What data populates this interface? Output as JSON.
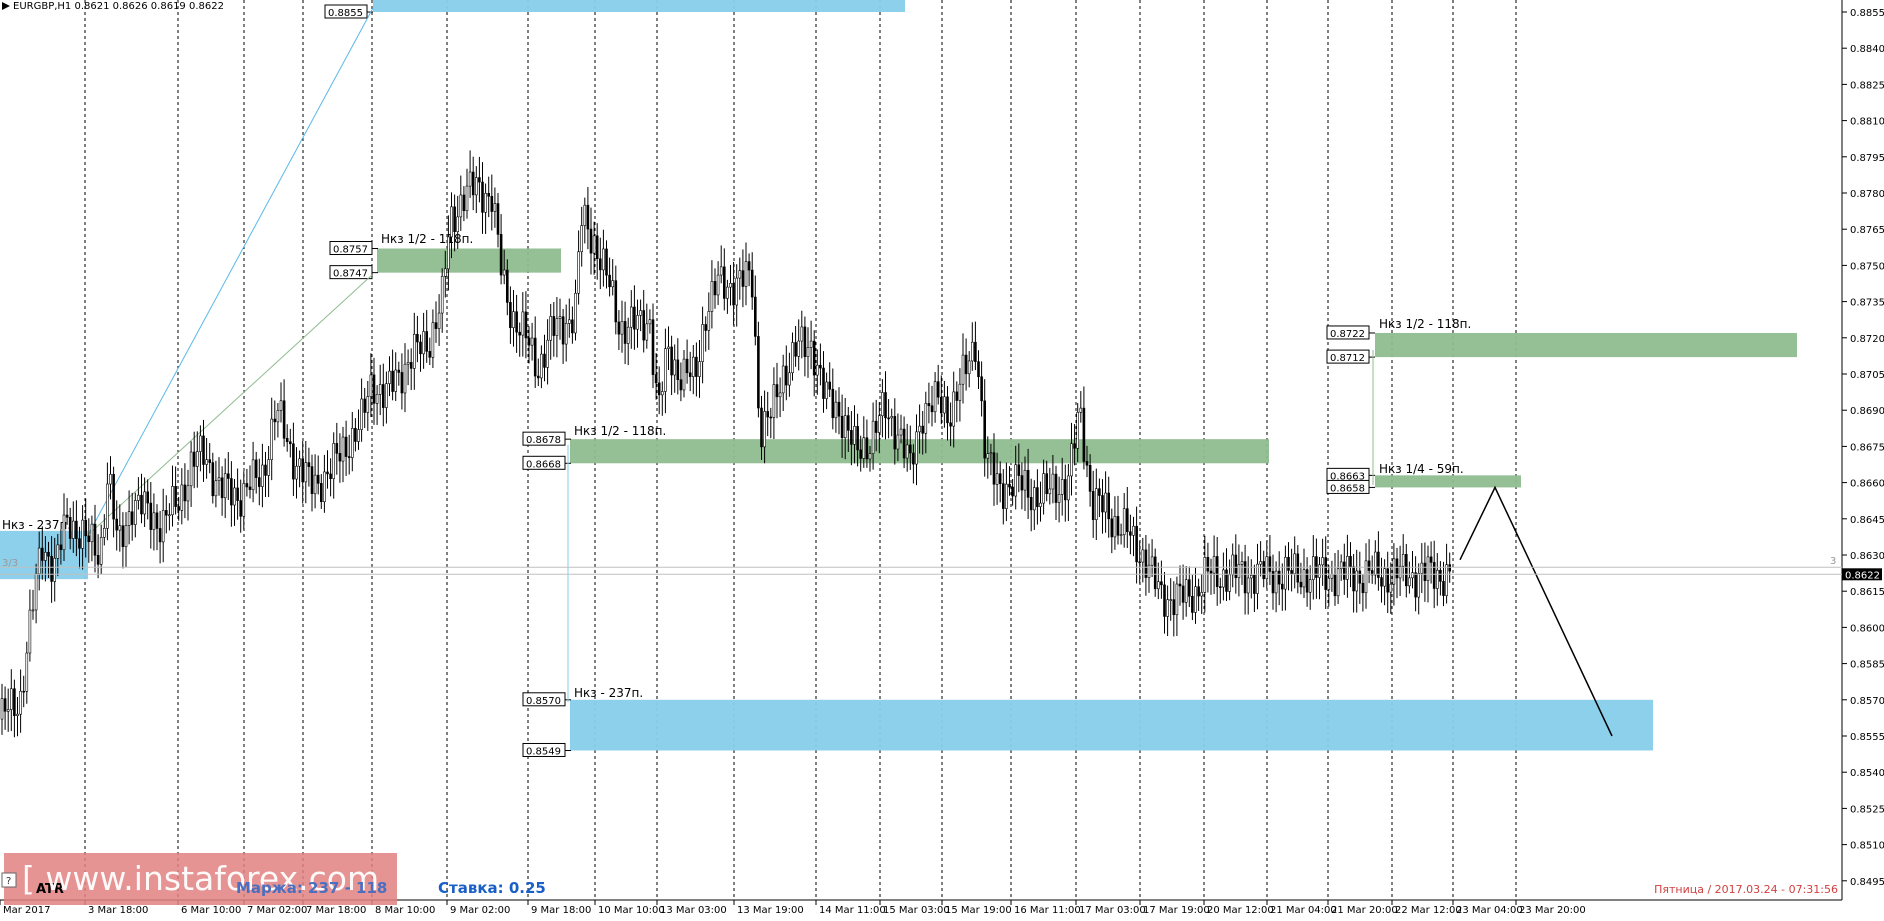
{
  "header": {
    "symbol_text": "EURGBP,H1  0.8621 0.8626 0.8619 0.8622"
  },
  "chart_data": {
    "type": "candlestick",
    "symbol": "EURGBP",
    "timeframe": "H1",
    "ohlc_header": {
      "open": 0.8621,
      "high": 0.8626,
      "low": 0.8619,
      "close": 0.8622
    },
    "current_price": 0.8622,
    "current_price_label": "0.8622",
    "ylim": [
      0.8487,
      0.8862
    ],
    "y_ticks": [
      "0.8855",
      "0.8840",
      "0.8825",
      "0.8810",
      "0.8795",
      "0.8780",
      "0.8765",
      "0.8750",
      "0.8735",
      "0.8720",
      "0.8705",
      "0.8690",
      "0.8675",
      "0.8660",
      "0.8645",
      "0.8630",
      "0.8615",
      "0.8600",
      "0.8585",
      "0.8570",
      "0.8555",
      "0.8540",
      "0.8525",
      "0.8510",
      "0.8495"
    ],
    "x_ticks": [
      "Mar 2017",
      "3 Mar 18:00",
      "6 Mar 10:00",
      "7 Mar 02:00",
      "7 Mar 18:00",
      "8 Mar 10:00",
      "9 Mar 02:00",
      "9 Mar 18:00",
      "10 Mar 10:00",
      "13 Mar 03:00",
      "13 Mar 19:00",
      "14 Mar 11:00",
      "15 Mar 03:00",
      "15 Mar 19:00",
      "16 Mar 11:00",
      "17 Mar 03:00",
      "17 Mar 19:00",
      "20 Mar 12:00",
      "21 Mar 04:00",
      "21 Mar 20:00",
      "22 Mar 12:00",
      "23 Mar 04:00",
      "23 Mar 20:00"
    ],
    "price_path": [
      [
        0,
        0.8562
      ],
      [
        20,
        0.857
      ],
      [
        30,
        0.86
      ],
      [
        42,
        0.8635
      ],
      [
        55,
        0.8625
      ],
      [
        68,
        0.8645
      ],
      [
        85,
        0.8637
      ],
      [
        100,
        0.863
      ],
      [
        108,
        0.8665
      ],
      [
        118,
        0.8632
      ],
      [
        132,
        0.8652
      ],
      [
        150,
        0.8647
      ],
      [
        162,
        0.8643
      ],
      [
        178,
        0.8652
      ],
      [
        192,
        0.8668
      ],
      [
        205,
        0.8672
      ],
      [
        220,
        0.8657
      ],
      [
        240,
        0.8655
      ],
      [
        262,
        0.8663
      ],
      [
        276,
        0.869
      ],
      [
        292,
        0.8672
      ],
      [
        310,
        0.8659
      ],
      [
        330,
        0.8664
      ],
      [
        345,
        0.8676
      ],
      [
        360,
        0.8682
      ],
      [
        372,
        0.8703
      ],
      [
        385,
        0.8695
      ],
      [
        398,
        0.8705
      ],
      [
        412,
        0.8712
      ],
      [
        430,
        0.872
      ],
      [
        442,
        0.8735
      ],
      [
        450,
        0.8768
      ],
      [
        462,
        0.8778
      ],
      [
        478,
        0.8783
      ],
      [
        492,
        0.8778
      ],
      [
        502,
        0.8745
      ],
      [
        512,
        0.873
      ],
      [
        525,
        0.872
      ],
      [
        538,
        0.8708
      ],
      [
        552,
        0.8722
      ],
      [
        566,
        0.8727
      ],
      [
        575,
        0.873
      ],
      [
        582,
        0.877
      ],
      [
        595,
        0.876
      ],
      [
        610,
        0.874
      ],
      [
        620,
        0.8725
      ],
      [
        638,
        0.8725
      ],
      [
        650,
        0.8728
      ],
      [
        658,
        0.8688
      ],
      [
        668,
        0.8715
      ],
      [
        680,
        0.8705
      ],
      [
        695,
        0.8703
      ],
      [
        705,
        0.873
      ],
      [
        718,
        0.8742
      ],
      [
        740,
        0.8743
      ],
      [
        752,
        0.8745
      ],
      [
        760,
        0.8682
      ],
      [
        772,
        0.8688
      ],
      [
        782,
        0.8705
      ],
      [
        797,
        0.8715
      ],
      [
        812,
        0.8718
      ],
      [
        825,
        0.8695
      ],
      [
        840,
        0.869
      ],
      [
        856,
        0.8672
      ],
      [
        870,
        0.8678
      ],
      [
        885,
        0.869
      ],
      [
        900,
        0.868
      ],
      [
        910,
        0.8665
      ],
      [
        922,
        0.869
      ],
      [
        938,
        0.8693
      ],
      [
        950,
        0.869
      ],
      [
        965,
        0.8705
      ],
      [
        976,
        0.872
      ],
      [
        986,
        0.8668
      ],
      [
        998,
        0.866
      ],
      [
        1010,
        0.8658
      ],
      [
        1025,
        0.866
      ],
      [
        1040,
        0.8652
      ],
      [
        1055,
        0.866
      ],
      [
        1068,
        0.8658
      ],
      [
        1080,
        0.8692
      ],
      [
        1092,
        0.865
      ],
      [
        1105,
        0.865
      ],
      [
        1118,
        0.8642
      ],
      [
        1130,
        0.8638
      ],
      [
        1143,
        0.863
      ],
      [
        1158,
        0.8615
      ],
      [
        1170,
        0.8612
      ],
      [
        1182,
        0.8612
      ],
      [
        1195,
        0.8615
      ],
      [
        1207,
        0.8622
      ]
    ],
    "zones": [
      {
        "label": "Нкз - 237п.",
        "top": 0.864,
        "bottom": 0.862,
        "color": "#87ceeb"
      },
      {
        "label": "",
        "top_label": "0.8855",
        "top": 0.8862,
        "bottom": 0.8855,
        "color": "#87ceeb"
      },
      {
        "label": "Нкз 1/2 - 118п.",
        "top_label": "0.8757",
        "bottom_label": "0.8747",
        "top": 0.8757,
        "bottom": 0.8747,
        "color": "#8fbc8f"
      },
      {
        "label": "Нкз 1/2 - 118п.",
        "top_label": "0.8678",
        "bottom_label": "0.8668",
        "top": 0.8678,
        "bottom": 0.8668,
        "color": "#8fbc8f"
      },
      {
        "label": "Нкз - 237п.",
        "top_label": "0.8570",
        "bottom_label": "0.8549",
        "top": 0.857,
        "bottom": 0.8549,
        "color": "#87ceeb"
      },
      {
        "label": "Нкз 1/2 - 118п.",
        "top_label": "0.8722",
        "bottom_label": "0.8712",
        "top": 0.8722,
        "bottom": 0.8712,
        "color": "#8fbc8f"
      },
      {
        "label": "Нкз 1/4 - 59п.",
        "top_label": "0.8663",
        "bottom_label": "0.8658",
        "top": 0.8663,
        "bottom": 0.8658,
        "color": "#8fbc8f"
      }
    ],
    "projection": [
      [
        0.8628
      ],
      [
        0.8658
      ],
      [
        0.8555
      ]
    ],
    "grid": true
  },
  "footer": {
    "stake_label": "Ставка: 0.25",
    "margin_label": "Маржа: 237 - 118",
    "atr_label": "ATR",
    "watermark": "[ www.instaforex.com",
    "datetime": "Пятница  /  2017.03.24  -  07:31:56",
    "corner_3": "3",
    "corner_3_3": "3/3",
    "help_box": "?"
  },
  "colors": {
    "background": "#ffffff",
    "blue_zone": "#87ceeb",
    "green_zone": "#8fbc8f",
    "candle": "#000000",
    "watermark_bg": "#e08080",
    "stake_text": "#1a5fc8",
    "date_text": "#d04040"
  }
}
